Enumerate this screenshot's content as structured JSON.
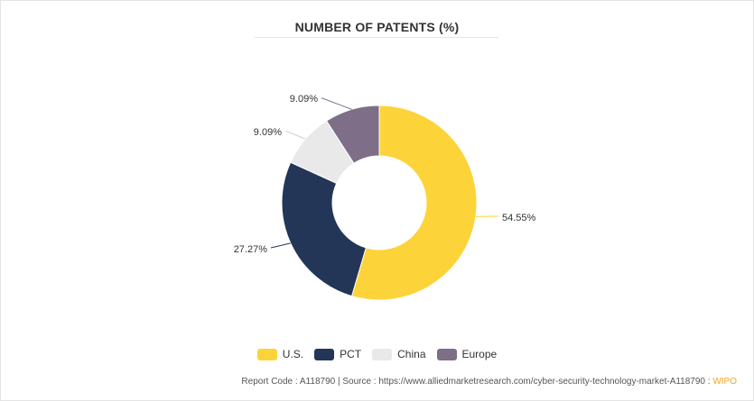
{
  "colors": {
    "us": "#FDD33A",
    "pct": "#233657",
    "china": "#E9E9E9",
    "europe": "#7E6E87",
    "accent": "#F5A623"
  },
  "chart_data": {
    "type": "pie",
    "title": "NUMBER OF PATENTS (%)",
    "donut": true,
    "categories": [
      "U.S.",
      "PCT",
      "China",
      "Europe"
    ],
    "values": [
      54.55,
      27.27,
      9.09,
      9.09
    ],
    "data_labels": [
      "54.55%",
      "27.27%",
      "9.09%",
      "9.09%"
    ],
    "legend": "bottom-center"
  },
  "legend": [
    {
      "label": "U.S.",
      "color": "#FDD33A"
    },
    {
      "label": "PCT",
      "color": "#233657"
    },
    {
      "label": "China",
      "color": "#E9E9E9"
    },
    {
      "label": "Europe",
      "color": "#7E6E87"
    }
  ],
  "footer": {
    "text": "Report Code : A118790  |  Source : https://www.alliedmarketresearch.com/cyber-security-technology-market-A118790 : ",
    "source_name": "WIPO"
  }
}
